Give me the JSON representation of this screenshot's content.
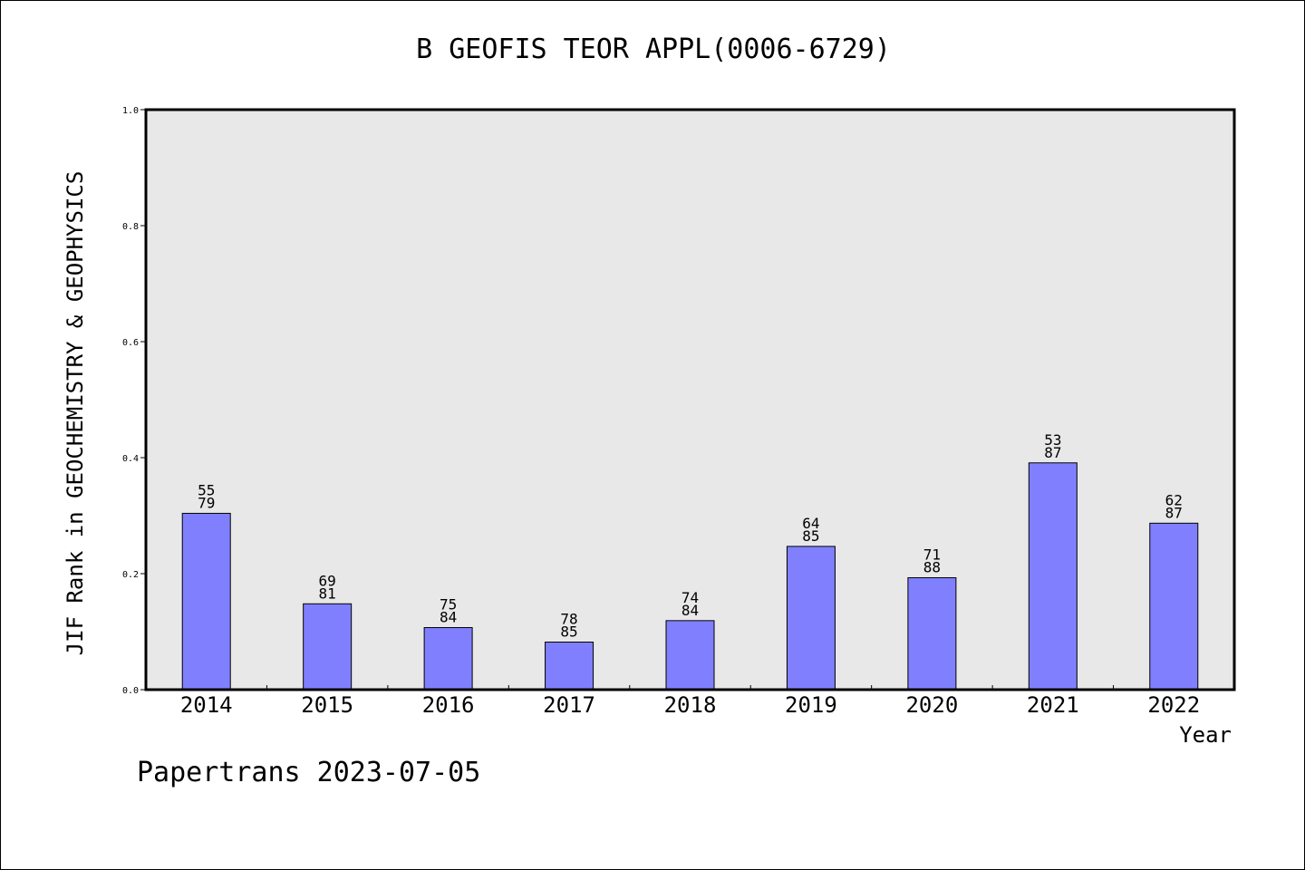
{
  "chart_data": {
    "type": "bar",
    "title": "B GEOFIS TEOR APPL(0006-6729)",
    "xlabel": "Year",
    "ylabel": "JIF Rank in GEOCHEMISTRY & GEOPHYSICS",
    "categories": [
      "2014",
      "2015",
      "2016",
      "2017",
      "2018",
      "2019",
      "2020",
      "2021",
      "2022"
    ],
    "values": [
      0.304,
      0.148,
      0.107,
      0.082,
      0.119,
      0.247,
      0.193,
      0.391,
      0.287
    ],
    "rank_labels": [
      [
        "55",
        "79"
      ],
      [
        "69",
        "81"
      ],
      [
        "75",
        "84"
      ],
      [
        "78",
        "85"
      ],
      [
        "74",
        "84"
      ],
      [
        "64",
        "85"
      ],
      [
        "71",
        "88"
      ],
      [
        "53",
        "87"
      ],
      [
        "62",
        "87"
      ]
    ],
    "ylim": [
      0,
      1.0
    ],
    "yticks": [
      "0.0",
      "0.2",
      "0.4",
      "0.6",
      "0.8",
      "1.0"
    ],
    "grid": false,
    "colors": {
      "bar": "#8080ff",
      "plot_background": "#e8e8e8"
    }
  },
  "footer": "Papertrans 2023-07-05"
}
